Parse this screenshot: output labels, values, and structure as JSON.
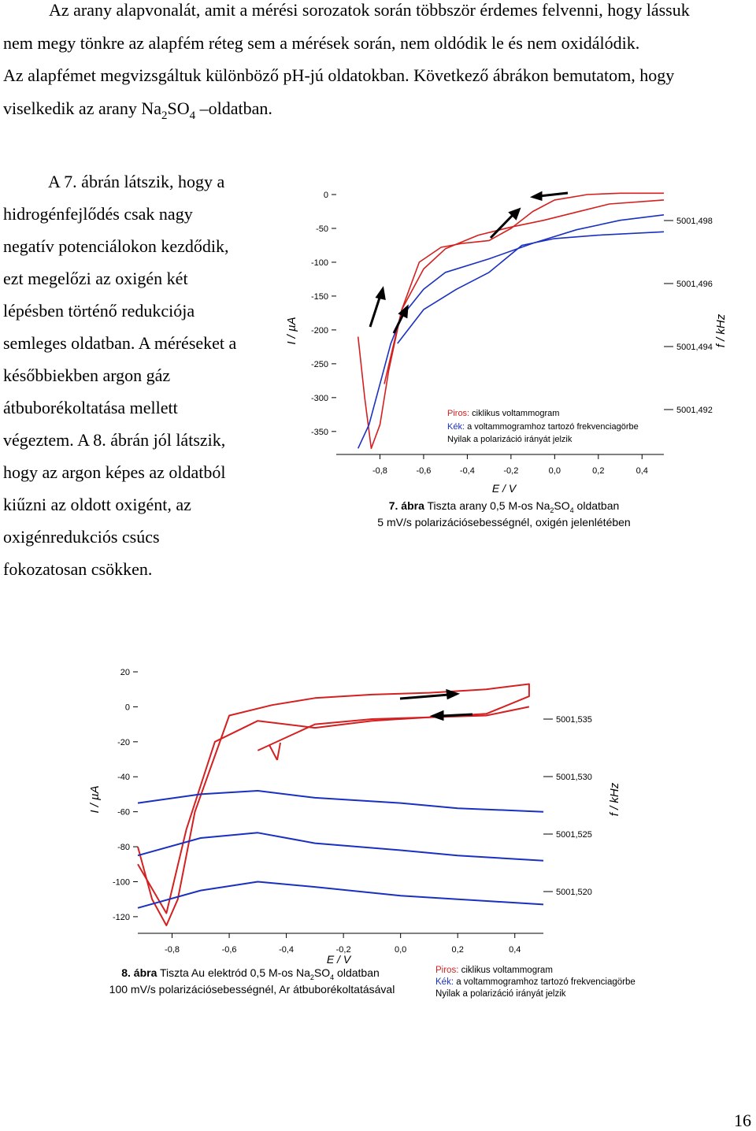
{
  "intro": {
    "line1": "Az arany alapvonalát, amit a mérési sorozatok során többször érdemes felvenni, hogy lássuk",
    "line2": "nem megy tönkre az alapfém réteg sem a mérések során, nem oldódik le és nem oxidálódik.",
    "line3": "Az alapfémet megvizsgáltuk különböző pH-jú oldatokban. Következő ábrákon bemutatom, hogy",
    "line4_pre": "viselkedik az arany Na",
    "line4_sub1": "2",
    "line4_mid": "SO",
    "line4_sub2": "4",
    "line4_post": " –oldatban."
  },
  "left_column": [
    "A 7. ábrán látszik, hogy a",
    "hidrogénfejlődés csak nagy",
    "negatív potenciálokon kezdődik,",
    "ezt megelőzi az oxigén két",
    "lépésben történő redukciója",
    "semleges oldatban. A méréseket a",
    "későbbiekben argon gáz",
    "átbuborékoltatása mellett",
    "végeztem. A 8. ábrán jól látszik,",
    "hogy az argon képes az oldatból",
    "kiűzni az oldott oxigént, az",
    "oxigénredukciós csúcs",
    "fokozatosan csökken."
  ],
  "fig7": {
    "chart_data": {
      "type": "line",
      "xlabel": "E / V",
      "ylabel": "I / µA",
      "y2label": "f / kHz",
      "xticks": [
        "-0,8",
        "-0,6",
        "-0,4",
        "-0,2",
        "0,0",
        "0,2",
        "0,4"
      ],
      "yticks": [
        "0",
        "-50",
        "-100",
        "-150",
        "-200",
        "-250",
        "-300",
        "-350"
      ],
      "y2ticks": [
        "5001,498",
        "5001,496",
        "5001,494",
        "5001,492"
      ],
      "xlim": [
        -1.0,
        0.5
      ],
      "ylim": [
        -370,
        0
      ],
      "series": [
        {
          "color": "#d42020",
          "x": [
            -0.9,
            -0.87,
            -0.84,
            -0.8,
            -0.76,
            -0.7,
            -0.6,
            -0.5,
            -0.35,
            -0.2,
            -0.05,
            0.1,
            0.25,
            0.5
          ],
          "y": [
            -210,
            -300,
            -375,
            -340,
            -260,
            -170,
            -110,
            -80,
            -60,
            -48,
            -38,
            -26,
            -14,
            -8
          ]
        },
        {
          "color": "#d42020",
          "x": [
            -0.78,
            -0.7,
            -0.62,
            -0.52,
            -0.42,
            -0.3,
            -0.2,
            -0.1,
            0.0,
            0.15,
            0.3,
            0.5
          ],
          "y": [
            -280,
            -170,
            -100,
            -78,
            -72,
            -68,
            -50,
            -25,
            -8,
            0,
            2,
            2
          ]
        },
        {
          "color": "#1a30c0",
          "x": [
            -0.9,
            -0.85,
            -0.8,
            -0.75,
            -0.7,
            -0.6,
            -0.5,
            -0.3,
            -0.1,
            0.1,
            0.3,
            0.5
          ],
          "y": [
            -375,
            -340,
            -280,
            -220,
            -180,
            -140,
            -115,
            -95,
            -72,
            -52,
            -38,
            -30
          ]
        },
        {
          "color": "#1a30c0",
          "x": [
            -0.72,
            -0.6,
            -0.45,
            -0.3,
            -0.15,
            0.0,
            0.2,
            0.5
          ],
          "y": [
            -220,
            -170,
            -140,
            -115,
            -75,
            -65,
            -60,
            -55
          ]
        }
      ]
    },
    "legend": {
      "red_label": "Piros:",
      "red_text": " ciklikus voltammogram",
      "blue_label": "Kék:",
      "blue_text": " a voltammogramhoz tartozó frekvenciagörbe",
      "arrow_text": "Nyilak a polarizáció irányát jelzik"
    },
    "caption": {
      "num": "7. ábra",
      "text_pre": " Tiszta arany 0,5 M-os Na",
      "sub1": "2",
      "text_mid": "SO",
      "sub2": "4",
      "text_post": " oldatban",
      "line2": "5 mV/s polarizációsebességnél, oxigén jelenlétében"
    },
    "colors": {
      "red": "#d42020",
      "blue": "#1a30c0"
    }
  },
  "fig8": {
    "chart_data": {
      "type": "line",
      "xlabel": "E / V",
      "ylabel": "I / µA",
      "y2label": "f / kHz",
      "xticks": [
        "-0,8",
        "-0,6",
        "-0,4",
        "-0,2",
        "0,0",
        "0,2",
        "0,4"
      ],
      "yticks": [
        "20",
        "0",
        "-20",
        "-40",
        "-60",
        "-80",
        "-100",
        "-120"
      ],
      "y2ticks": [
        "5001,535",
        "5001,530",
        "5001,525",
        "5001,520"
      ],
      "xlim": [
        -0.92,
        0.5
      ],
      "ylim": [
        -125,
        20
      ],
      "series": [
        {
          "color": "#d42020",
          "x": [
            -0.92,
            -0.87,
            -0.82,
            -0.78,
            -0.72,
            -0.6,
            -0.45,
            -0.3,
            -0.1,
            0.1,
            0.3,
            0.45,
            0.45,
            0.3,
            0.1,
            -0.1,
            -0.3,
            -0.5
          ],
          "y": [
            -80,
            -110,
            -125,
            -110,
            -60,
            -5,
            1,
            5,
            7,
            8,
            10,
            13,
            6,
            -4,
            -6,
            -7,
            -10,
            -25
          ]
        },
        {
          "color": "#d42020",
          "x": [
            -0.92,
            -0.82,
            -0.75,
            -0.65,
            -0.5,
            -0.3,
            -0.1,
            0.1,
            0.3,
            0.45
          ],
          "y": [
            -90,
            -118,
            -70,
            -20,
            -8,
            -12,
            -8,
            -6,
            -5,
            0
          ]
        },
        {
          "color": "#1a30c0",
          "x": [
            -0.92,
            -0.7,
            -0.5,
            -0.3,
            0.0,
            0.2,
            0.5
          ],
          "y": [
            -55,
            -50,
            -48,
            -52,
            -55,
            -58,
            -60
          ]
        },
        {
          "color": "#1a30c0",
          "x": [
            -0.92,
            -0.7,
            -0.5,
            -0.3,
            0.0,
            0.2,
            0.5
          ],
          "y": [
            -85,
            -75,
            -72,
            -78,
            -82,
            -85,
            -88
          ]
        },
        {
          "color": "#1a30c0",
          "x": [
            -0.92,
            -0.7,
            -0.5,
            -0.3,
            0.0,
            0.2,
            0.5
          ],
          "y": [
            -115,
            -105,
            -100,
            -103,
            -108,
            -110,
            -113
          ]
        }
      ]
    },
    "legend": {
      "red_label": "Piros:",
      "red_text": " ciklikus voltammogram",
      "blue_label": "Kék:",
      "blue_text": " a voltammogramhoz tartozó frekvenciagörbe",
      "arrow_text": "Nyilak a polarizáció irányát jelzik"
    },
    "caption": {
      "num": "8. ábra",
      "text_pre": " Tiszta Au elektród 0,5 M-os Na",
      "sub1": "2",
      "text_mid": "SO",
      "sub2": "4",
      "text_post": " oldatban",
      "line2": "100 mV/s polarizációsebességnél, Ar átbuborékoltatásával"
    }
  },
  "page_number": "16"
}
